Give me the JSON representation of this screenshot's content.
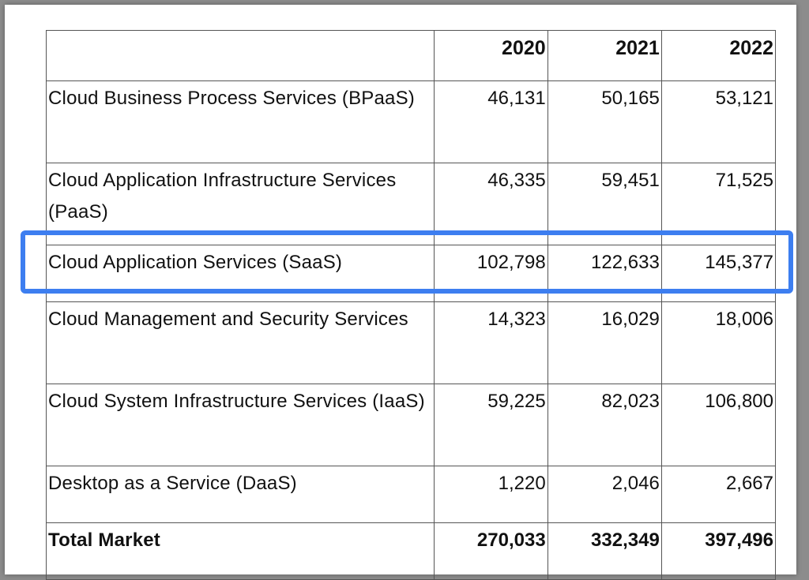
{
  "chart_data": {
    "type": "table",
    "columns": [
      "",
      "2020",
      "2021",
      "2022"
    ],
    "rows": [
      {
        "label": "Cloud Business Process Services (BPaaS)",
        "values": [
          "46,131",
          "50,165",
          "53,121"
        ]
      },
      {
        "label": "Cloud Application Infrastructure Services (PaaS)",
        "values": [
          "46,335",
          "59,451",
          "71,525"
        ]
      },
      {
        "label": "Cloud Application Services (SaaS)",
        "values": [
          "102,798",
          "122,633",
          "145,377"
        ],
        "highlighted": true
      },
      {
        "label": "Cloud Management and Security Services",
        "values": [
          "14,323",
          "16,029",
          "18,006"
        ]
      },
      {
        "label": "Cloud System Infrastructure Services (IaaS)",
        "values": [
          "59,225",
          "82,023",
          "106,800"
        ]
      },
      {
        "label": "Desktop as a Service (DaaS)",
        "values": [
          "1,220",
          "2,046",
          "2,667"
        ]
      },
      {
        "label": "Total Market",
        "values": [
          "270,033",
          "332,349",
          "397,496"
        ],
        "bold": true
      }
    ],
    "highlight_color": "#3d7ef0"
  }
}
